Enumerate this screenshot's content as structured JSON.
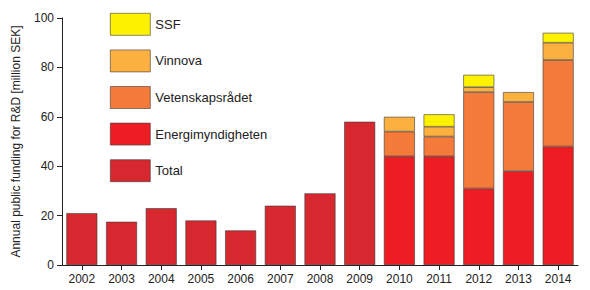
{
  "chart_data": {
    "type": "bar",
    "stacked": true,
    "grid": false,
    "legend": "upper left",
    "y_label": "Annual public funding for R&D [million SEK]",
    "categories": [
      "2002",
      "2003",
      "2004",
      "2005",
      "2006",
      "2007",
      "2008",
      "2009",
      "2010",
      "2011",
      "2012",
      "2013",
      "2014"
    ],
    "ylim": [
      0,
      100
    ],
    "yticks": [
      0,
      20,
      40,
      60,
      80,
      100
    ],
    "series": [
      {
        "name": "SSF",
        "color": "#fff200",
        "values": [
          null,
          null,
          null,
          null,
          null,
          null,
          null,
          null,
          null,
          5,
          5,
          null,
          4
        ]
      },
      {
        "name": "Vinnova",
        "color": "#fbb040",
        "values": [
          null,
          null,
          null,
          null,
          null,
          null,
          null,
          null,
          6,
          4,
          2,
          4,
          7
        ]
      },
      {
        "name": "Vetenskapsrådet",
        "color": "#f47b3a",
        "values": [
          null,
          null,
          null,
          null,
          null,
          null,
          null,
          null,
          10,
          8,
          39,
          28,
          35
        ]
      },
      {
        "name": "Energimyndigheten",
        "color": "#ee1d23",
        "values": [
          null,
          null,
          null,
          null,
          null,
          null,
          null,
          null,
          44,
          44,
          31,
          38,
          48
        ]
      },
      {
        "name": "Total",
        "color": "#d7282f",
        "values": [
          21,
          17.5,
          23,
          18,
          14,
          24,
          29,
          58,
          null,
          null,
          null,
          null,
          null
        ]
      }
    ]
  }
}
